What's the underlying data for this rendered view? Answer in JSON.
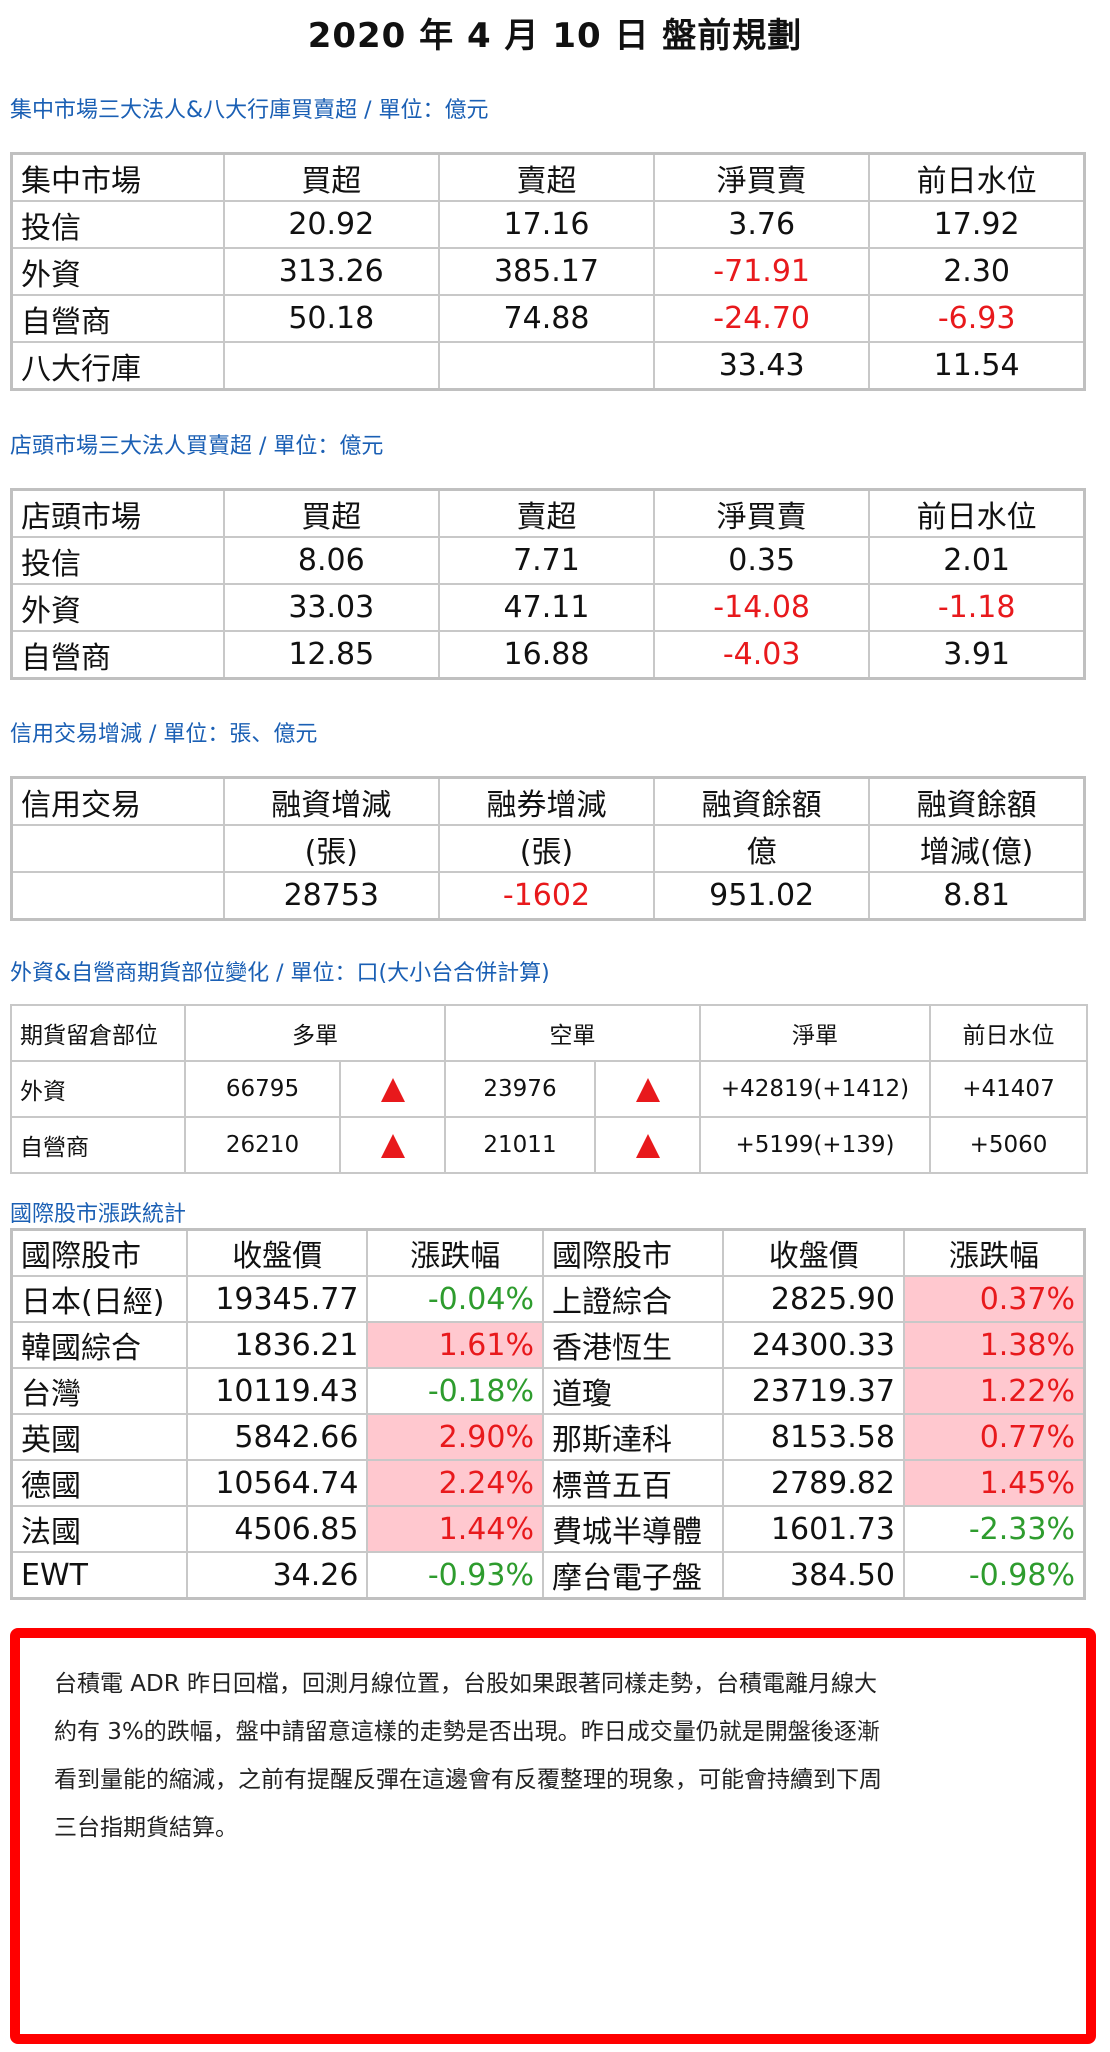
{
  "title": "2020 年 4 月 10 日  盤前規劃",
  "colors": {
    "accent": "#1a5fb4",
    "red": "#e8191c",
    "green": "#2e9c2e",
    "highlight": "#ffc8cf",
    "border": "#ff0000"
  },
  "s1": {
    "heading": "集中市場三大法人&八大行庫買賣超 / 單位：億元",
    "headers": [
      "集中市場",
      "買超",
      "賣超",
      "淨買賣",
      "前日水位"
    ],
    "rows": [
      [
        "投信",
        "20.92",
        "17.16",
        "3.76",
        "17.92"
      ],
      [
        "外資",
        "313.26",
        "385.17",
        "-71.91",
        "2.30"
      ],
      [
        "自營商",
        "50.18",
        "74.88",
        "-24.70",
        "-6.93"
      ],
      [
        "八大行庫",
        "",
        "",
        "33.43",
        "11.54"
      ]
    ]
  },
  "s2": {
    "heading": "店頭市場三大法人買賣超 / 單位：億元",
    "headers": [
      "店頭市場",
      "買超",
      "賣超",
      "淨買賣",
      "前日水位"
    ],
    "rows": [
      [
        "投信",
        "8.06",
        "7.71",
        "0.35",
        "2.01"
      ],
      [
        "外資",
        "33.03",
        "47.11",
        "-14.08",
        "-1.18"
      ],
      [
        "自營商",
        "12.85",
        "16.88",
        "-4.03",
        "3.91"
      ]
    ]
  },
  "s3": {
    "heading": "信用交易增減 / 單位：張、億元",
    "headers": [
      "信用交易",
      "融資增減",
      "融券增減",
      "融資餘額",
      "融資餘額"
    ],
    "sub": [
      "",
      "(張)",
      "(張)",
      "億",
      "增減(億)"
    ],
    "values": [
      "",
      "28753",
      "-1602",
      "951.02",
      "8.81"
    ]
  },
  "s4": {
    "heading": "外資&自營商期貨部位變化 / 單位：口(大小台合併計算)",
    "headers": [
      "期貨留倉部位",
      "多單",
      "空單",
      "淨單",
      "前日水位"
    ],
    "rows": [
      {
        "name": "外資",
        "long": "66795",
        "long_icon": "triangle-up-icon",
        "short": "23976",
        "short_icon": "triangle-up-icon",
        "net": "+42819(+1412)",
        "prev": "+41407"
      },
      {
        "name": "自營商",
        "long": "26210",
        "long_icon": "triangle-up-icon",
        "short": "21011",
        "short_icon": "triangle-up-icon",
        "net": "+5199(+139)",
        "prev": "+5060"
      }
    ]
  },
  "s5": {
    "heading": "國際股市漲跌統計",
    "headers": [
      "國際股市",
      "收盤價",
      "漲跌幅",
      "國際股市",
      "收盤價",
      "漲跌幅"
    ],
    "rows": [
      [
        "日本(日經)",
        "19345.77",
        "-0.04%",
        "上證綜合",
        "2825.90",
        "0.37%"
      ],
      [
        "韓國綜合",
        "1836.21",
        "1.61%",
        "香港恆生",
        "24300.33",
        "1.38%"
      ],
      [
        "台灣",
        "10119.43",
        "-0.18%",
        "道瓊",
        "23719.37",
        "1.22%"
      ],
      [
        "英國",
        "5842.66",
        "2.90%",
        "那斯達科",
        "8153.58",
        "0.77%"
      ],
      [
        "德國",
        "10564.74",
        "2.24%",
        "標普五百",
        "2789.82",
        "1.45%"
      ],
      [
        "法國",
        "4506.85",
        "1.44%",
        "費城半導體",
        "1601.73",
        "-2.33%"
      ],
      [
        "EWT",
        "34.26",
        "-0.93%",
        "摩台電子盤",
        "384.50",
        "-0.98%"
      ]
    ]
  },
  "note": {
    "lines": [
      "台積電 ADR 昨日回檔，回測月線位置，台股如果跟著同樣走勢，台積電離月線大",
      "約有 3%的跌幅，盤中請留意這樣的走勢是否出現。昨日成交量仍就是開盤後逐漸",
      "看到量能的縮減，之前有提醒反彈在這邊會有反覆整理的現象，可能會持續到下周",
      "三台指期貨結算。"
    ]
  }
}
